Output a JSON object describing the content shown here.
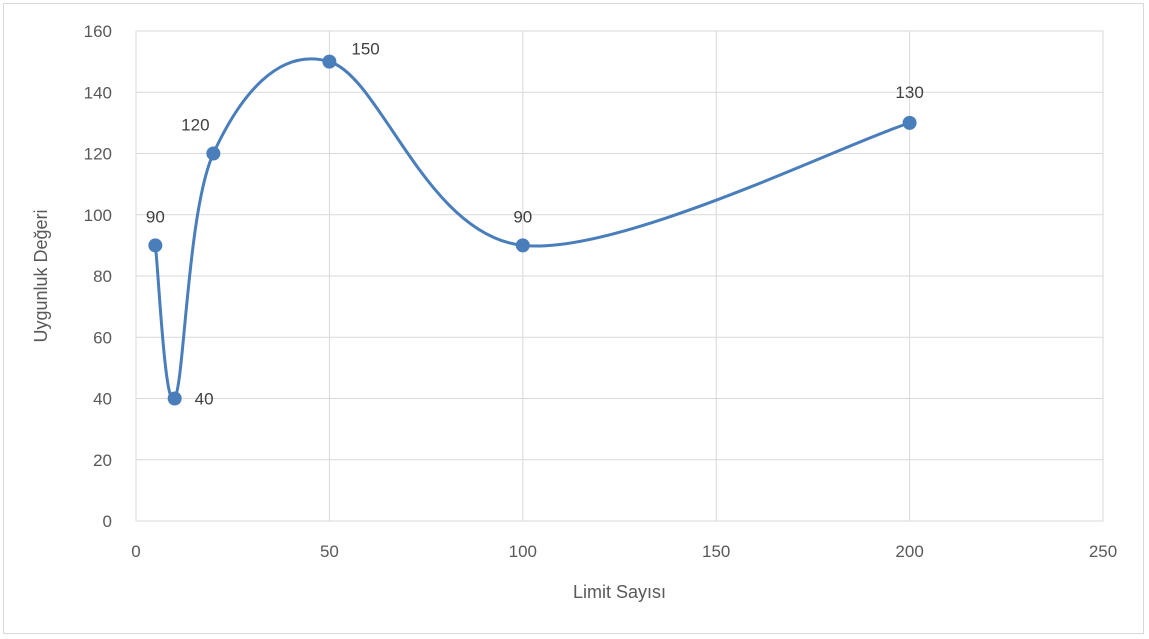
{
  "chart_data": {
    "type": "scatter",
    "xlabel": "Limit Sayısı",
    "ylabel": "Uygunluk Değeri",
    "xlim": [
      0,
      250
    ],
    "ylim": [
      0,
      160
    ],
    "x_ticks": [
      0,
      50,
      100,
      150,
      200,
      250
    ],
    "y_ticks": [
      0,
      20,
      40,
      60,
      80,
      100,
      120,
      140,
      160
    ],
    "grid": true,
    "line_style": "smooth",
    "series": [
      {
        "x": [
          5,
          10,
          20,
          50,
          100,
          200
        ],
        "y": [
          90,
          40,
          120,
          150,
          90,
          130
        ],
        "labels": [
          "90",
          "40",
          "120",
          "150",
          "90",
          "130"
        ],
        "color": "#4a7ebb"
      }
    ]
  }
}
